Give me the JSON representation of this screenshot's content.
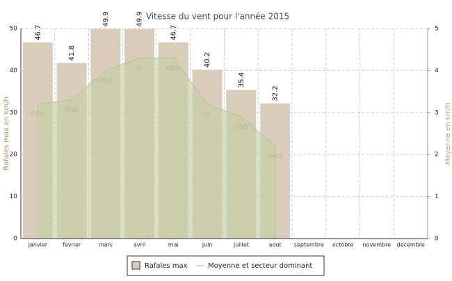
{
  "chart_data": {
    "type": "bar-area",
    "title": "Vitesse du vent pour l'année 2015",
    "y_label": "Rafales max en km/h",
    "y2_label": "Moyenne en km/h",
    "categories": [
      "janvier",
      "fevrier",
      "mars",
      "avril",
      "mai",
      "juin",
      "juillet",
      "aout",
      "septembre",
      "octobre",
      "novembre",
      "decembre"
    ],
    "series": [
      {
        "name": "Rafales max",
        "color": "#d9ccba",
        "values": [
          46.7,
          41.8,
          49.9,
          49.9,
          46.7,
          40.2,
          35.4,
          32.2,
          null,
          null,
          null,
          null
        ]
      },
      {
        "name": "Moyenne et secteur dominant",
        "color": "#c3cfa6",
        "axis": "y2",
        "values": [
          3.2,
          3.3,
          4.0,
          4.3,
          4.3,
          3.2,
          2.9,
          2.2,
          null,
          null,
          null,
          null
        ],
        "sector_labels": [
          "OSO",
          "OSO",
          "OSO",
          "O",
          "OSO",
          "O",
          "OSO",
          "OSO",
          null,
          null,
          null,
          null
        ]
      }
    ],
    "ylim": [
      0,
      50
    ],
    "yticks": [
      0,
      10,
      20,
      30,
      40,
      50
    ],
    "y2lim": [
      0,
      5
    ],
    "y2ticks": [
      0,
      1,
      2,
      3,
      4,
      5
    ],
    "grid": true
  }
}
